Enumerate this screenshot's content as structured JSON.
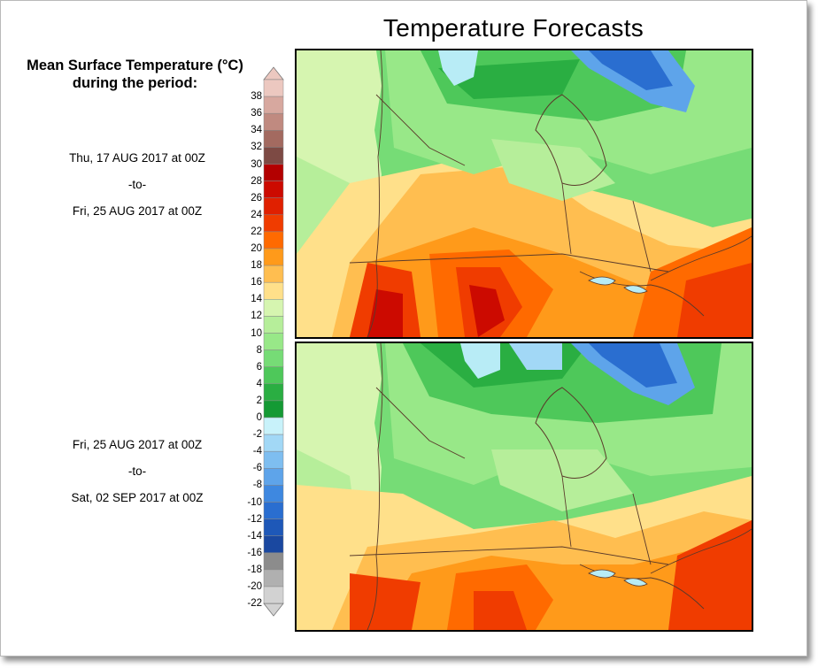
{
  "title": "Temperature Forecasts",
  "legend": {
    "heading_line1": "Mean Surface Temperature (°C)",
    "heading_line2": "during the period:",
    "stops": [
      {
        "label": "38",
        "color": "#ecc8c0"
      },
      {
        "label": "36",
        "color": "#d7a89f"
      },
      {
        "label": "34",
        "color": "#c08a80"
      },
      {
        "label": "32",
        "color": "#a36a60"
      },
      {
        "label": "30",
        "color": "#7d4a44"
      },
      {
        "label": "28",
        "color": "#b30000"
      },
      {
        "label": "26",
        "color": "#cc0a00"
      },
      {
        "label": "24",
        "color": "#e02000"
      },
      {
        "label": "22",
        "color": "#f03c00"
      },
      {
        "label": "20",
        "color": "#ff6a00"
      },
      {
        "label": "18",
        "color": "#ff9a1a"
      },
      {
        "label": "16",
        "color": "#ffbe50"
      },
      {
        "label": "14",
        "color": "#ffe08a"
      },
      {
        "label": "12",
        "color": "#d6f5b0"
      },
      {
        "label": "10",
        "color": "#b6ee9a"
      },
      {
        "label": "8",
        "color": "#98e888"
      },
      {
        "label": "6",
        "color": "#76dc76"
      },
      {
        "label": "4",
        "color": "#4ec85a"
      },
      {
        "label": "2",
        "color": "#2aae42"
      },
      {
        "label": "0",
        "color": "#149a34"
      },
      {
        "label": "-2",
        "color": "#c8f2fa"
      },
      {
        "label": "-4",
        "color": "#a2d8f6"
      },
      {
        "label": "-6",
        "color": "#7ebef0"
      },
      {
        "label": "-8",
        "color": "#5ea4ea"
      },
      {
        "label": "-10",
        "color": "#3e88e0"
      },
      {
        "label": "-12",
        "color": "#2a6ed0"
      },
      {
        "label": "-14",
        "color": "#1e58b8"
      },
      {
        "label": "-16",
        "color": "#1a48a0"
      },
      {
        "label": "-18",
        "color": "#8c8c8c"
      },
      {
        "label": "-20",
        "color": "#b0b0b0"
      },
      {
        "label": "-22",
        "color": "#d2d2d2"
      }
    ]
  },
  "periods": [
    {
      "start": "Thu, 17 AUG 2017 at 00Z",
      "sep": "-to-",
      "end": "Fri, 25 AUG 2017 at 00Z"
    },
    {
      "start": "Fri, 25 AUG 2017 at 00Z",
      "sep": "-to-",
      "end": "Sat, 02 SEP 2017 at 00Z"
    }
  ],
  "colors": {
    "frame_border": "#b9b9b9",
    "map_border": "#000000",
    "coastline": "#5a3a2a",
    "water": "#b8ecf6",
    "ice_blue": "#2a6ed0"
  }
}
